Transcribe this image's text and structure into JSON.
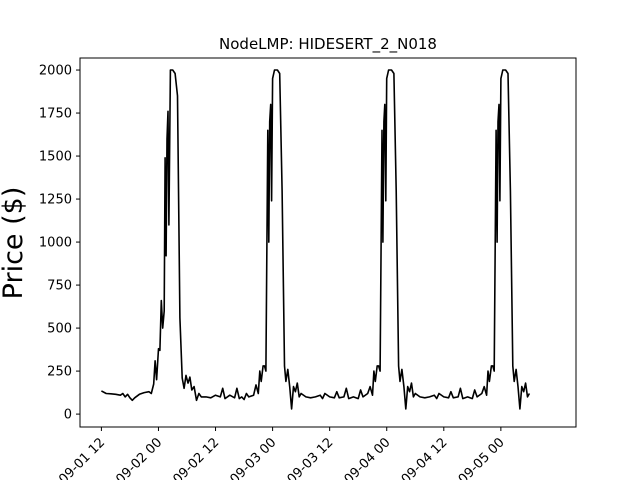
{
  "chart_data": {
    "type": "line",
    "title": "NodeLMP: HIDESERT_2_N018",
    "xlabel": "",
    "ylabel": "Price ($)",
    "x_ticks": [
      "09-01 12",
      "09-02 00",
      "09-02 12",
      "09-03 00",
      "09-03 12",
      "09-04 00",
      "09-04 12",
      "09-05 00"
    ],
    "x_tick_hours": [
      36,
      48,
      60,
      72,
      84,
      96,
      108,
      120
    ],
    "x_unit": "hours since 09-01 00",
    "xlim": [
      31.5,
      135.8
    ],
    "y_ticks": [
      0,
      250,
      500,
      750,
      1000,
      1250,
      1500,
      1750,
      2000
    ],
    "ylim": [
      -75,
      2070
    ],
    "grid": false,
    "line_color": "#000000",
    "series": [
      {
        "name": "",
        "points": [
          [
            36.0,
            135
          ],
          [
            37.0,
            120
          ],
          [
            38.0,
            118
          ],
          [
            39.0,
            115
          ],
          [
            40.0,
            110
          ],
          [
            40.5,
            120
          ],
          [
            41.0,
            100
          ],
          [
            41.5,
            115
          ],
          [
            42.0,
            95
          ],
          [
            42.5,
            80
          ],
          [
            43.0,
            95
          ],
          [
            44.0,
            115
          ],
          [
            45.0,
            125
          ],
          [
            46.0,
            130
          ],
          [
            46.5,
            120
          ],
          [
            47.0,
            175
          ],
          [
            47.3,
            310
          ],
          [
            47.6,
            200
          ],
          [
            48.0,
            380
          ],
          [
            48.3,
            370
          ],
          [
            48.6,
            660
          ],
          [
            48.9,
            500
          ],
          [
            49.2,
            600
          ],
          [
            49.4,
            1490
          ],
          [
            49.6,
            920
          ],
          [
            49.8,
            1600
          ],
          [
            50.0,
            1760
          ],
          [
            50.2,
            1100
          ],
          [
            50.5,
            2000
          ],
          [
            51.0,
            2000
          ],
          [
            51.5,
            1980
          ],
          [
            52.0,
            1850
          ],
          [
            52.5,
            560
          ],
          [
            53.0,
            210
          ],
          [
            53.4,
            150
          ],
          [
            53.8,
            225
          ],
          [
            54.2,
            180
          ],
          [
            54.6,
            215
          ],
          [
            55.0,
            140
          ],
          [
            55.5,
            160
          ],
          [
            56.0,
            80
          ],
          [
            56.5,
            120
          ],
          [
            57.0,
            100
          ],
          [
            58.0,
            100
          ],
          [
            59.0,
            95
          ],
          [
            60.0,
            110
          ],
          [
            61.0,
            100
          ],
          [
            61.5,
            150
          ],
          [
            62.0,
            90
          ],
          [
            63.0,
            110
          ],
          [
            64.0,
            95
          ],
          [
            64.5,
            150
          ],
          [
            65.0,
            90
          ],
          [
            65.5,
            100
          ],
          [
            66.0,
            85
          ],
          [
            66.5,
            120
          ],
          [
            67.0,
            100
          ],
          [
            68.0,
            110
          ],
          [
            68.5,
            170
          ],
          [
            69.0,
            120
          ],
          [
            69.3,
            250
          ],
          [
            69.6,
            190
          ],
          [
            70.0,
            280
          ],
          [
            70.3,
            280
          ],
          [
            70.6,
            250
          ],
          [
            71.0,
            1650
          ],
          [
            71.2,
            1000
          ],
          [
            71.4,
            1700
          ],
          [
            71.6,
            1800
          ],
          [
            71.8,
            1240
          ],
          [
            72.0,
            1950
          ],
          [
            72.4,
            2000
          ],
          [
            73.0,
            2000
          ],
          [
            73.5,
            1980
          ],
          [
            74.0,
            1300
          ],
          [
            74.5,
            280
          ],
          [
            74.8,
            190
          ],
          [
            75.2,
            260
          ],
          [
            75.6,
            160
          ],
          [
            76.0,
            30
          ],
          [
            76.4,
            160
          ],
          [
            76.8,
            130
          ],
          [
            77.2,
            180
          ],
          [
            77.6,
            100
          ],
          [
            78.0,
            120
          ],
          [
            79.0,
            100
          ],
          [
            80.0,
            95
          ],
          [
            81.0,
            100
          ],
          [
            82.0,
            110
          ],
          [
            82.5,
            90
          ],
          [
            83.0,
            120
          ],
          [
            84.0,
            100
          ],
          [
            85.0,
            95
          ],
          [
            85.5,
            130
          ],
          [
            86.0,
            95
          ],
          [
            87.0,
            100
          ],
          [
            87.5,
            150
          ],
          [
            88.0,
            90
          ],
          [
            89.0,
            100
          ],
          [
            90.0,
            90
          ],
          [
            90.5,
            140
          ],
          [
            91.0,
            100
          ],
          [
            92.0,
            120
          ],
          [
            92.5,
            160
          ],
          [
            93.0,
            110
          ],
          [
            93.3,
            250
          ],
          [
            93.6,
            190
          ],
          [
            94.0,
            280
          ],
          [
            94.3,
            280
          ],
          [
            94.6,
            250
          ],
          [
            95.0,
            1650
          ],
          [
            95.2,
            1000
          ],
          [
            95.4,
            1700
          ],
          [
            95.6,
            1800
          ],
          [
            95.8,
            1240
          ],
          [
            96.0,
            1950
          ],
          [
            96.4,
            2000
          ],
          [
            97.0,
            2000
          ],
          [
            97.5,
            1980
          ],
          [
            98.0,
            1300
          ],
          [
            98.5,
            280
          ],
          [
            98.8,
            190
          ],
          [
            99.2,
            260
          ],
          [
            99.6,
            160
          ],
          [
            100.0,
            30
          ],
          [
            100.4,
            160
          ],
          [
            100.8,
            130
          ],
          [
            101.2,
            180
          ],
          [
            101.6,
            100
          ],
          [
            102.0,
            120
          ],
          [
            103.0,
            100
          ],
          [
            104.0,
            95
          ],
          [
            105.0,
            100
          ],
          [
            106.0,
            110
          ],
          [
            106.5,
            90
          ],
          [
            107.0,
            120
          ],
          [
            108.0,
            100
          ],
          [
            109.0,
            95
          ],
          [
            109.5,
            130
          ],
          [
            110.0,
            95
          ],
          [
            111.0,
            100
          ],
          [
            111.5,
            150
          ],
          [
            112.0,
            90
          ],
          [
            113.0,
            100
          ],
          [
            114.0,
            90
          ],
          [
            114.5,
            140
          ],
          [
            115.0,
            100
          ],
          [
            116.0,
            120
          ],
          [
            116.5,
            160
          ],
          [
            117.0,
            110
          ],
          [
            117.3,
            250
          ],
          [
            117.6,
            190
          ],
          [
            118.0,
            280
          ],
          [
            118.3,
            280
          ],
          [
            118.6,
            250
          ],
          [
            119.0,
            1650
          ],
          [
            119.2,
            1000
          ],
          [
            119.4,
            1700
          ],
          [
            119.6,
            1800
          ],
          [
            119.8,
            1240
          ],
          [
            120.0,
            1950
          ],
          [
            120.4,
            2000
          ],
          [
            121.0,
            2000
          ],
          [
            121.5,
            1980
          ],
          [
            122.0,
            1300
          ],
          [
            122.5,
            280
          ],
          [
            122.8,
            190
          ],
          [
            123.2,
            260
          ],
          [
            123.6,
            160
          ],
          [
            124.0,
            30
          ],
          [
            124.4,
            160
          ],
          [
            124.8,
            130
          ],
          [
            125.2,
            180
          ],
          [
            125.6,
            100
          ],
          [
            126.0,
            120
          ]
        ]
      }
    ]
  }
}
